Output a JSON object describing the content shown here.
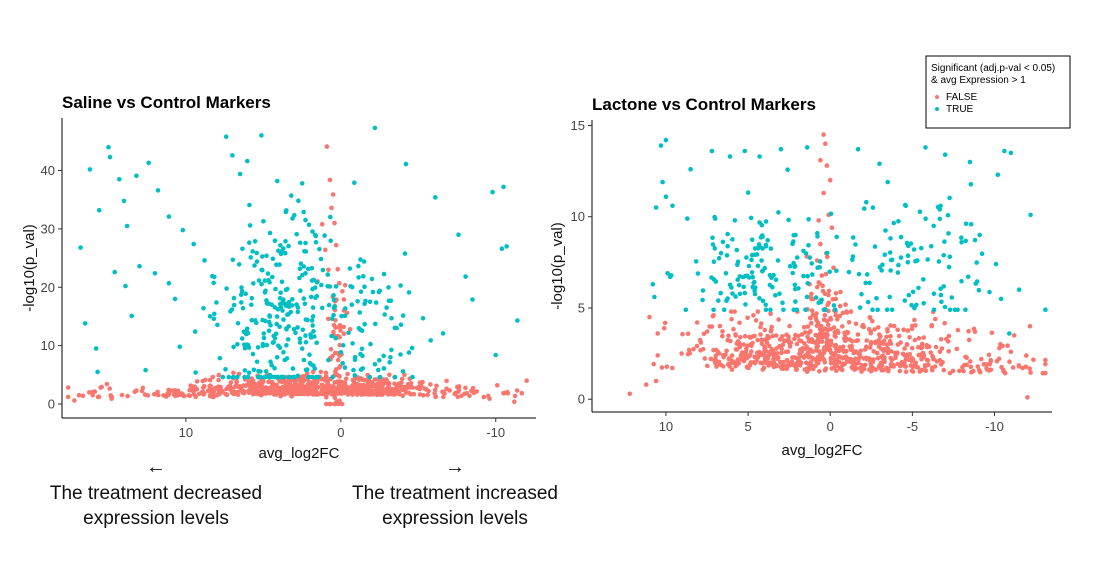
{
  "colors": {
    "false": "#F8766D",
    "true": "#00BFC4"
  },
  "legend": {
    "title_line1": "Significant (adj.p-val < 0.05)",
    "title_line2": "& avg Expression > 1",
    "items": [
      {
        "key": "false",
        "label": "FALSE"
      },
      {
        "key": "true",
        "label": "TRUE"
      }
    ]
  },
  "annotations": {
    "left_arrow": "←",
    "right_arrow": "→",
    "left_line1": "The treatment decreased",
    "left_line2": "expression levels",
    "right_line1": "The treatment increased",
    "right_line2": "expression levels"
  },
  "chart_data": [
    {
      "type": "scatter",
      "title": "Saline vs Control Markers",
      "xlabel": "avg_log2FC",
      "ylabel": "-log10(p_val)",
      "xlim": [
        18,
        -12.6
      ],
      "ylim": [
        -2.4,
        49
      ],
      "xticks": [
        10,
        0,
        -10
      ],
      "xtick_labels": [
        "10",
        "0",
        "-10"
      ],
      "yticks": [
        0,
        10,
        20,
        30,
        40
      ],
      "ytick_labels": [
        "0",
        "10",
        "20",
        "30",
        "40"
      ],
      "seed": 7,
      "series": [
        {
          "key": "true",
          "points": [
            [
              16.8,
              26.8
            ],
            [
              16.5,
              13.8
            ],
            [
              15.8,
              9.5
            ],
            [
              16.2,
              40.2
            ],
            [
              15.6,
              33.2
            ],
            [
              14.9,
              42.3
            ],
            [
              15.0,
              44.0
            ],
            [
              14.3,
              38.5
            ],
            [
              14.0,
              34.8
            ],
            [
              13.8,
              30.5
            ],
            [
              14.6,
              22.6
            ],
            [
              13.9,
              20.2
            ],
            [
              13.5,
              15.1
            ],
            [
              13.2,
              39.1
            ],
            [
              12.4,
              41.3
            ],
            [
              11.8,
              36.6
            ],
            [
              11.1,
              32.1
            ],
            [
              10.2,
              29.8
            ],
            [
              9.5,
              27.4
            ],
            [
              8.8,
              24.6
            ],
            [
              8.3,
              21.9
            ],
            [
              7.4,
              45.8
            ],
            [
              7.0,
              42.6
            ],
            [
              6.5,
              39.4
            ],
            [
              5.9,
              34.1
            ],
            [
              5.0,
              31.3
            ],
            [
              4.1,
              38.2
            ],
            [
              3.2,
              35.7
            ],
            [
              2.4,
              32.9
            ],
            [
              1.6,
              27.7
            ],
            [
              -2.2,
              47.3
            ],
            [
              -4.2,
              41.1
            ],
            [
              -6.1,
              35.4
            ],
            [
              -7.6,
              29.0
            ],
            [
              -9.8,
              36.3
            ],
            [
              -10.5,
              37.2
            ],
            [
              -10.7,
              27.0
            ],
            [
              -10.4,
              26.6
            ],
            [
              -11.4,
              14.3
            ],
            [
              -10.0,
              8.4
            ],
            [
              -8.5,
              17.9
            ],
            [
              -6.6,
              12.1
            ],
            [
              -5.8,
              10.9
            ],
            [
              -4.6,
              9.6
            ],
            [
              -3.2,
              8.0
            ],
            [
              -2.2,
              6.8
            ],
            [
              -1.3,
              5.9
            ],
            [
              -0.9,
              4.9
            ],
            [
              13.0,
              23.6
            ],
            [
              12.0,
              22.4
            ],
            [
              11.1,
              20.7
            ],
            [
              10.7,
              18.0
            ],
            [
              12.6,
              5.8
            ],
            [
              15.7,
              5.5
            ],
            [
              10.4,
              9.8
            ],
            [
              9.4,
              12.4
            ],
            [
              8.2,
              14.6
            ]
          ],
          "clouds": [
            {
              "n": 290,
              "xmu": 3.6,
              "xsd": 2.1,
              "ymu": 16,
              "ysd": 9.0,
              "ymin": 4.6,
              "ymax": 47
            },
            {
              "n": 60,
              "xmu": -2.4,
              "xsd": 1.6,
              "ymu": 15,
              "ysd": 6,
              "ymin": 4.6,
              "ymax": 30
            }
          ]
        },
        {
          "key": "false",
          "points": [
            [
              0.9,
              44.1
            ],
            [
              0.5,
              35.9
            ],
            [
              0.4,
              31.0
            ],
            [
              0.3,
              27.2
            ],
            [
              0.2,
              23.1
            ],
            [
              0.1,
              20.7
            ],
            [
              -0.1,
              19.3
            ],
            [
              -0.2,
              17.9
            ],
            [
              -0.4,
              15.6
            ],
            [
              -0.6,
              12.8
            ],
            [
              0.7,
              38.4
            ],
            [
              0.6,
              33.6
            ],
            [
              1.2,
              30.8
            ],
            [
              1.0,
              26.4
            ],
            [
              0.8,
              23.0
            ],
            [
              1.5,
              21.0
            ],
            [
              16.9,
              1.5
            ],
            [
              15.5,
              2.8
            ],
            [
              15.1,
              3.4
            ],
            [
              14.8,
              0.9
            ],
            [
              17.2,
              0.6
            ],
            [
              -11.2,
              0.4
            ],
            [
              -10.6,
              1.9
            ],
            [
              -10.1,
              3.2
            ],
            [
              -9.6,
              0.9
            ]
          ],
          "clouds": [
            {
              "n": 480,
              "xmu": 3.2,
              "xsd": 2.8,
              "ymu": 1.6,
              "ysd": 1.5,
              "ymin": 0,
              "ymax": 5.5
            },
            {
              "n": 200,
              "xmu": -1.9,
              "xsd": 1.7,
              "ymu": 1.6,
              "ysd": 1.4,
              "ymin": 0,
              "ymax": 5
            },
            {
              "n": 60,
              "xmu": 0.3,
              "xsd": 0.35,
              "ymu": 8,
              "ysd": 6,
              "ymin": 0,
              "ymax": 36
            },
            {
              "n": 80,
              "xmu": 10,
              "xsd": 3.5,
              "ymu": 1.2,
              "ysd": 1.0,
              "ymin": 0,
              "ymax": 4
            },
            {
              "n": 50,
              "xmu": -6.5,
              "xsd": 2.5,
              "ymu": 1.2,
              "ysd": 1.0,
              "ymin": 0,
              "ymax": 4
            }
          ]
        }
      ]
    },
    {
      "type": "scatter",
      "title": "Lactone vs Control Markers",
      "xlabel": "avg_log2FC",
      "ylabel": "-log10(p_val)",
      "xlim": [
        14.5,
        -13.5
      ],
      "ylim": [
        -0.7,
        15.3
      ],
      "xticks": [
        10,
        5,
        0,
        -5,
        -10
      ],
      "xtick_labels": [
        "10",
        "5",
        "0",
        "-5",
        "-10"
      ],
      "yticks": [
        0,
        5,
        10,
        15
      ],
      "ytick_labels": [
        "0",
        "5",
        "10",
        "15"
      ],
      "seed": 11,
      "series": [
        {
          "key": "true",
          "points": [
            [
              10.0,
              14.2
            ],
            [
              10.3,
              13.9
            ],
            [
              10.2,
              11.9
            ],
            [
              10.0,
              11.1
            ],
            [
              9.6,
              10.6
            ],
            [
              9.9,
              6.9
            ],
            [
              10.8,
              6.3
            ],
            [
              10.7,
              5.6
            ],
            [
              8.5,
              12.6
            ],
            [
              8.7,
              9.9
            ],
            [
              7.2,
              13.6
            ],
            [
              7.0,
              9.9
            ],
            [
              6.1,
              13.3
            ],
            [
              5.8,
              9.8
            ],
            [
              5.2,
              13.6
            ],
            [
              4.3,
              13.3
            ],
            [
              3.0,
              13.7
            ],
            [
              1.4,
              13.8
            ],
            [
              -1.7,
              13.7
            ],
            [
              -3.0,
              12.9
            ],
            [
              -5.8,
              13.8
            ],
            [
              -7.0,
              13.4
            ],
            [
              -8.5,
              13.0
            ],
            [
              -10.6,
              13.6
            ],
            [
              -11.0,
              13.5
            ],
            [
              -12.2,
              10.1
            ],
            [
              -10.2,
              12.3
            ],
            [
              -11.5,
              6.0
            ],
            [
              -10.9,
              3.6
            ],
            [
              -10.4,
              5.5
            ],
            [
              -9.1,
              9.0
            ],
            [
              -8.0,
              8.6
            ],
            [
              -6.3,
              9.5
            ],
            [
              -4.6,
              10.6
            ],
            [
              -3.5,
              11.9
            ],
            [
              -2.6,
              10.5
            ]
          ],
          "clouds": [
            {
              "n": 130,
              "xmu": 4.2,
              "xsd": 2.2,
              "ymu": 7.2,
              "ysd": 1.7,
              "ymin": 4.9,
              "ymax": 13
            },
            {
              "n": 120,
              "xmu": -4.4,
              "xsd": 3.4,
              "ymu": 7.2,
              "ysd": 1.8,
              "ymin": 4.9,
              "ymax": 13
            }
          ]
        },
        {
          "key": "false",
          "points": [
            [
              0.4,
              14.5
            ],
            [
              0.3,
              14.0
            ],
            [
              0.6,
              13.1
            ],
            [
              0.2,
              12.8
            ],
            [
              0.0,
              12.0
            ],
            [
              0.4,
              11.3
            ],
            [
              0.1,
              10.1
            ],
            [
              0.7,
              9.8
            ],
            [
              -0.1,
              9.4
            ],
            [
              0.6,
              8.5
            ],
            [
              0.8,
              7.6
            ],
            [
              -0.2,
              7.2
            ],
            [
              0.7,
              6.4
            ],
            [
              1.2,
              5.6
            ],
            [
              -0.6,
              5.1
            ],
            [
              12.2,
              0.3
            ],
            [
              11.2,
              0.8
            ],
            [
              -12.0,
              0.1
            ],
            [
              -11.5,
              1.8
            ],
            [
              -11.0,
              2.6
            ],
            [
              -10.3,
              2.8
            ],
            [
              -11.2,
              3.5
            ],
            [
              10.5,
              3.6
            ],
            [
              10.5,
              2.4
            ],
            [
              11.0,
              4.5
            ],
            [
              10.6,
              1.0
            ]
          ],
          "clouds": [
            {
              "n": 330,
              "xmu": 3.8,
              "xsd": 2.7,
              "ymu": 1.6,
              "ysd": 1.3,
              "ymin": 0,
              "ymax": 4.8
            },
            {
              "n": 320,
              "xmu": -3.0,
              "xsd": 2.6,
              "ymu": 1.5,
              "ysd": 1.3,
              "ymin": 0,
              "ymax": 4.8
            },
            {
              "n": 80,
              "xmu": 0.5,
              "xsd": 0.6,
              "ymu": 2.5,
              "ysd": 2.2,
              "ymin": 0,
              "ymax": 8
            },
            {
              "n": 50,
              "xmu": -9.6,
              "xsd": 1.6,
              "ymu": 1.4,
              "ysd": 1.1,
              "ymin": 0,
              "ymax": 4
            }
          ]
        }
      ]
    }
  ]
}
